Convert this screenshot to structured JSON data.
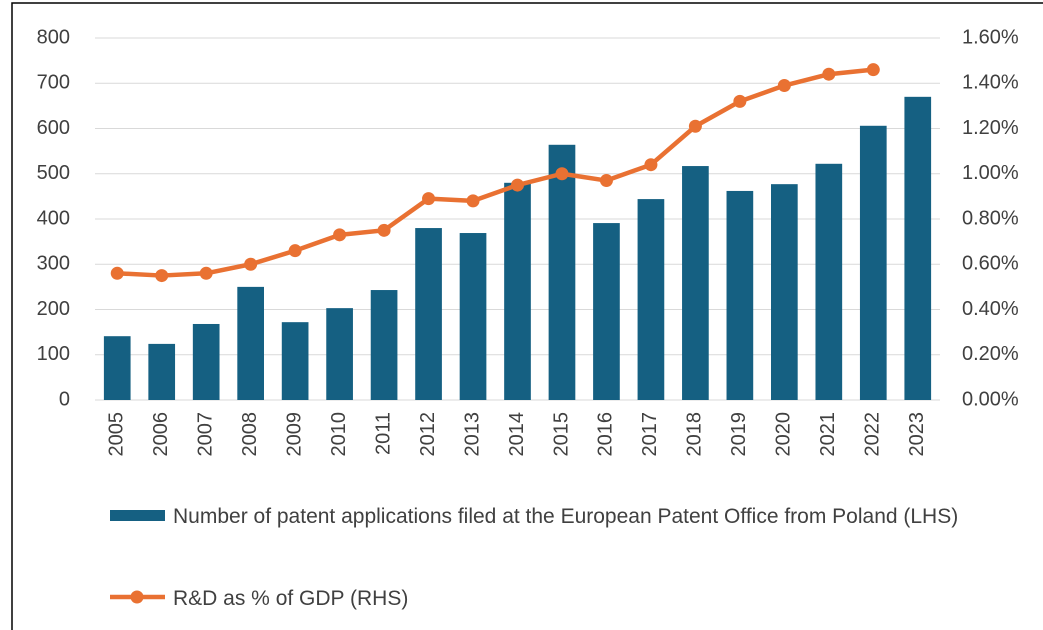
{
  "chart_data": {
    "type": "bar_line",
    "categories": [
      "2005",
      "2006",
      "2007",
      "2008",
      "2009",
      "2010",
      "2011",
      "2012",
      "2013",
      "2014",
      "2015",
      "2016",
      "2017",
      "2018",
      "2019",
      "2020",
      "2021",
      "2022",
      "2023"
    ],
    "series": [
      {
        "name": "Number of patent applications filed at the European Patent Office from Poland (LHS)",
        "type": "bar",
        "color": "#156082",
        "values": [
          141,
          124,
          168,
          250,
          172,
          203,
          243,
          380,
          369,
          480,
          564,
          391,
          444,
          517,
          462,
          477,
          522,
          606,
          670
        ]
      },
      {
        "name": "R&D as % of GDP (RHS)",
        "type": "line",
        "axis": "y2",
        "color": "#e97132",
        "values": [
          0.56,
          0.55,
          0.56,
          0.6,
          0.66,
          0.73,
          0.75,
          0.89,
          0.88,
          0.95,
          1.0,
          0.97,
          1.04,
          1.21,
          1.32,
          1.39,
          1.44,
          1.46,
          null
        ]
      }
    ],
    "ylim": [
      0,
      800
    ],
    "yticks": [
      0,
      100,
      200,
      300,
      400,
      500,
      600,
      700,
      800
    ],
    "y2lim": [
      0,
      1.6
    ],
    "y2ticks": [
      {
        "value": 0,
        "label": "0.00%"
      },
      {
        "value": 0.2,
        "label": "0.20%"
      },
      {
        "value": 0.4,
        "label": "0.40%"
      },
      {
        "value": 0.6,
        "label": "0.60%"
      },
      {
        "value": 0.8,
        "label": "0.80%"
      },
      {
        "value": 1.0,
        "label": "1.00%"
      },
      {
        "value": 1.2,
        "label": "1.20%"
      },
      {
        "value": 1.4,
        "label": "1.40%"
      },
      {
        "value": 1.6,
        "label": "1.60%"
      }
    ],
    "grid": true
  }
}
